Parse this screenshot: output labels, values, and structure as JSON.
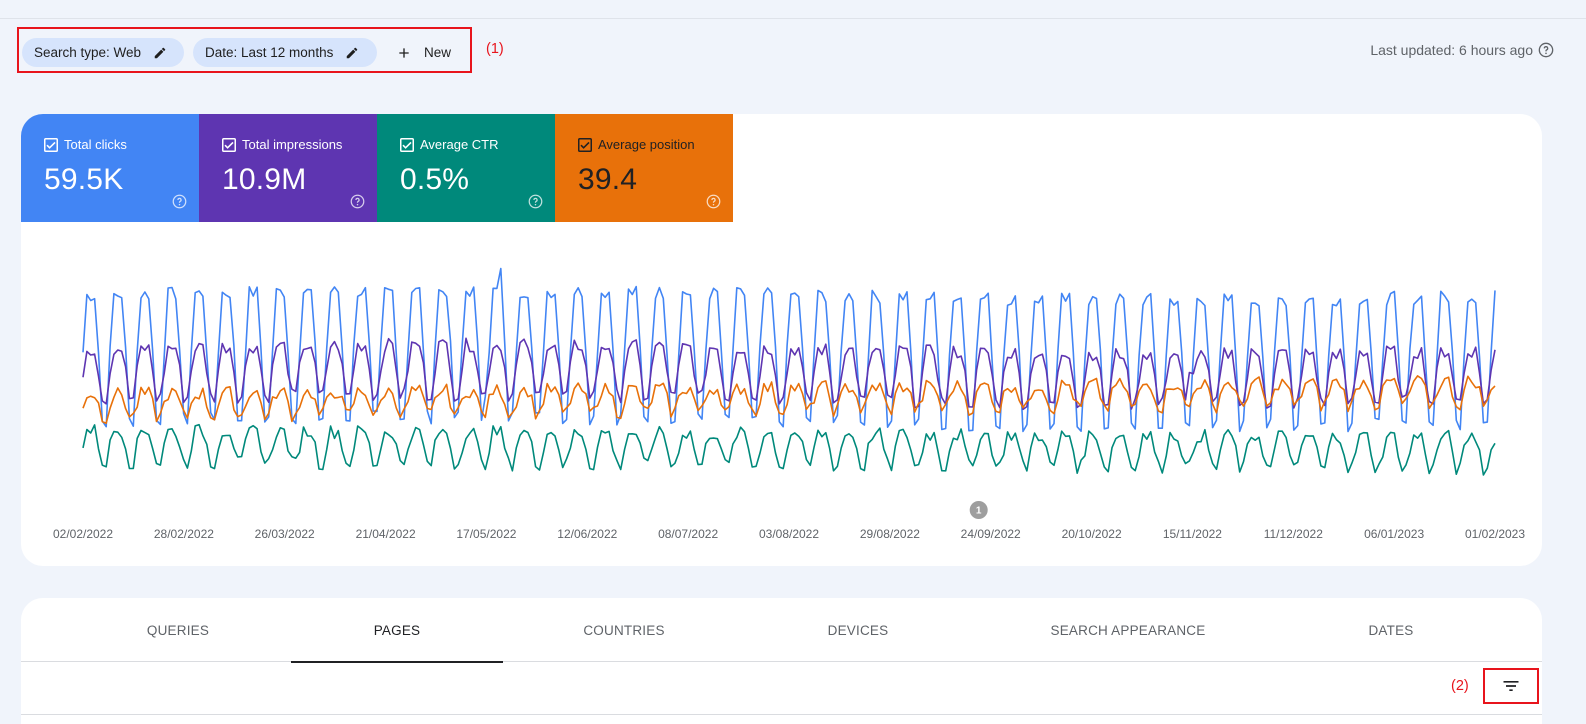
{
  "filters": {
    "search_type_label": "Search type: Web",
    "date_label": "Date: Last 12 months",
    "new_label": "New",
    "annotation": "(1)"
  },
  "status": {
    "last_updated": "Last updated: 6 hours ago"
  },
  "metrics": [
    {
      "label": "Total clicks",
      "value": "59.5K",
      "checked": true,
      "color": "#4285f4"
    },
    {
      "label": "Total impressions",
      "value": "10.9M",
      "checked": true,
      "color": "#5e35b1"
    },
    {
      "label": "Average CTR",
      "value": "0.5%",
      "checked": true,
      "color": "#00897b"
    },
    {
      "label": "Average position",
      "value": "39.4",
      "checked": true,
      "color": "#e8710a"
    }
  ],
  "chart_data": {
    "type": "line",
    "x_tick_labels": [
      "02/02/2022",
      "28/02/2022",
      "26/03/2022",
      "21/04/2022",
      "17/05/2022",
      "12/06/2022",
      "08/07/2022",
      "03/08/2022",
      "29/08/2022",
      "24/09/2022",
      "20/10/2022",
      "15/11/2022",
      "11/12/2022",
      "06/01/2023",
      "01/02/2023"
    ],
    "x_range": [
      "02/02/2022",
      "01/02/2023"
    ],
    "y_axis_shown": false,
    "grid": false,
    "annotation_marker": {
      "label": "1",
      "date": "24/09/2022"
    },
    "weekly_pattern": true,
    "series": [
      {
        "metric": "Total clicks",
        "color": "#4285f4",
        "weekday_peak_relative": 0.86,
        "weekend_trough_relative": 0.3,
        "spike_dates": [
          "17/05/2022",
          "21/05/2022"
        ]
      },
      {
        "metric": "Total impressions",
        "color": "#5e35b1",
        "weekday_peak_relative": 0.62,
        "weekend_trough_relative": 0.4,
        "spike_dates": [
          "15/11/2022"
        ]
      },
      {
        "metric": "Average position",
        "color": "#e8710a",
        "weekday_peak_relative": 0.42,
        "weekend_trough_relative": 0.32
      },
      {
        "metric": "Average CTR",
        "color": "#00897b",
        "weekday_peak_relative": 0.26,
        "weekend_trough_relative": 0.12
      }
    ]
  },
  "tabs": [
    {
      "label": "QUERIES",
      "active": false
    },
    {
      "label": "PAGES",
      "active": true
    },
    {
      "label": "COUNTRIES",
      "active": false
    },
    {
      "label": "DEVICES",
      "active": false
    },
    {
      "label": "SEARCH APPEARANCE",
      "active": false
    },
    {
      "label": "DATES",
      "active": false
    }
  ],
  "table_toolbar": {
    "annotation": "(2)",
    "filter_icon": "filter-list-icon"
  }
}
